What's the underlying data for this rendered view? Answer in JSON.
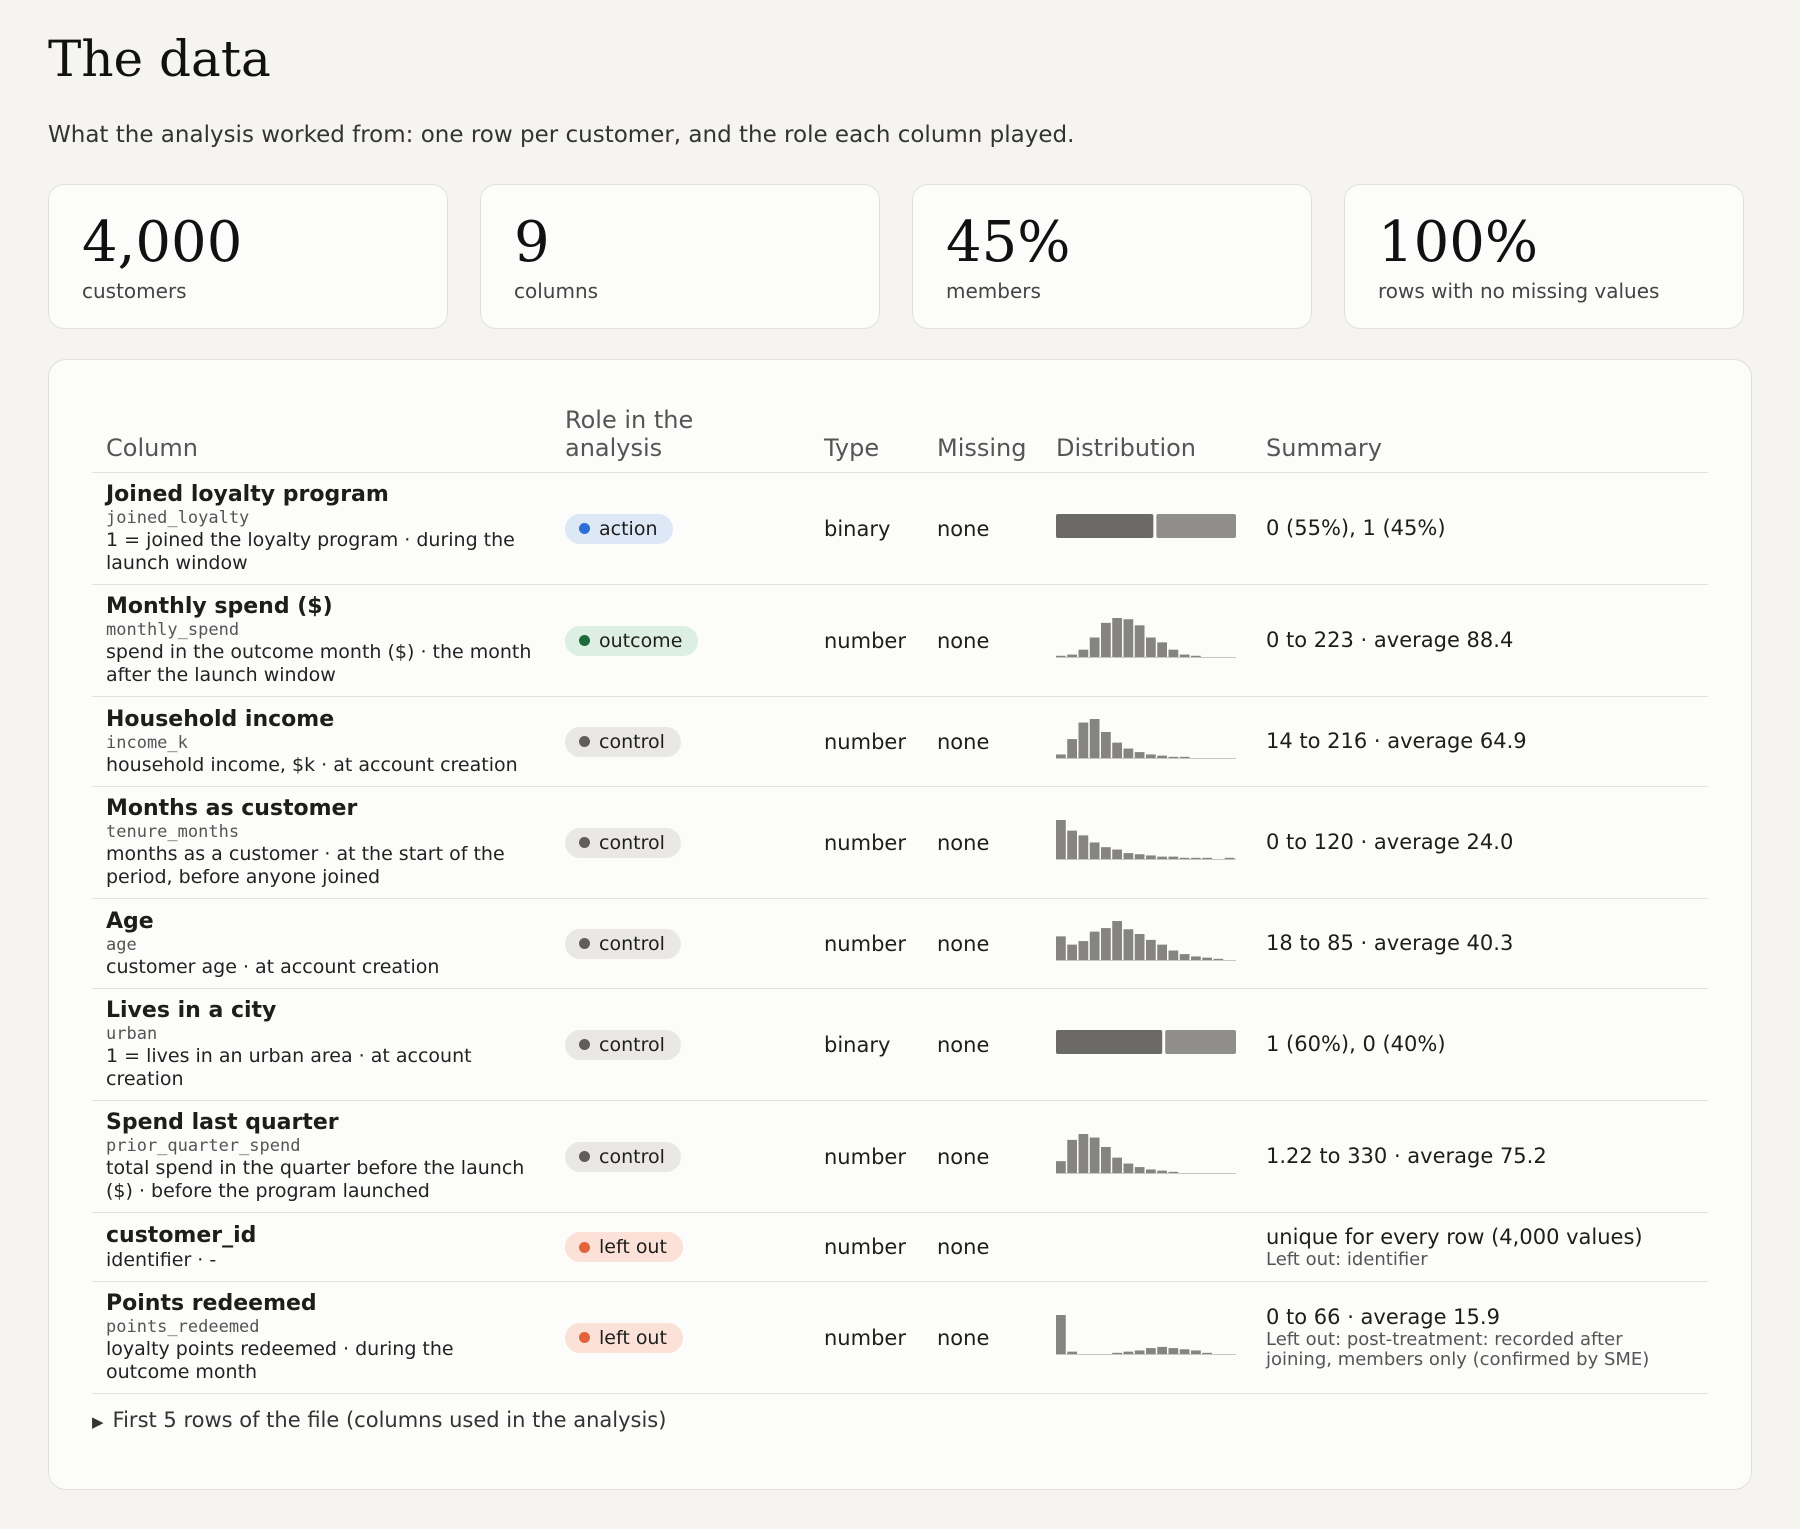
{
  "header": {
    "title": "The data",
    "subtitle": "What the analysis worked from: one row per customer, and the role each column played."
  },
  "stats": [
    {
      "value": "4,000",
      "label": "customers"
    },
    {
      "value": "9",
      "label": "columns"
    },
    {
      "value": "45%",
      "label": "members"
    },
    {
      "value": "100%",
      "label": "rows with no missing values"
    }
  ],
  "table": {
    "columns": [
      "Column",
      "Role in the analysis",
      "Type",
      "Missing",
      "Distribution",
      "Summary"
    ],
    "rows": [
      {
        "name": "Joined loyalty program",
        "field": "joined_loyalty",
        "description": "1 = joined the loyalty program · during the launch window",
        "role": "action",
        "type": "binary",
        "missing": "none",
        "shares": [
          55,
          45
        ],
        "summary": "0 (55%), 1 (45%)"
      },
      {
        "name": "Monthly spend ($)",
        "field": "monthly_spend",
        "description": "spend in the outcome month ($) · the month after the launch window",
        "role": "outcome",
        "type": "number",
        "missing": "none",
        "histogram": [
          1,
          2,
          6,
          16,
          28,
          32,
          31,
          26,
          16,
          12,
          6,
          2,
          1,
          0,
          0,
          0
        ],
        "summary": "0 to 223 · average 88.4"
      },
      {
        "name": "Household income",
        "field": "income_k",
        "description": "household income, $k · at account creation",
        "role": "control",
        "type": "number",
        "missing": "none",
        "histogram": [
          3,
          16,
          30,
          33,
          22,
          13,
          8,
          5,
          3,
          2,
          1,
          1,
          0,
          0,
          0,
          0
        ],
        "summary": "14 to 216 · average 64.9"
      },
      {
        "name": "Months as customer",
        "field": "tenure_months",
        "description": "months as a customer · at the start of the period, before anyone joined",
        "role": "control",
        "type": "number",
        "missing": "none",
        "histogram": [
          33,
          24,
          20,
          14,
          10,
          8,
          5,
          4,
          3,
          2,
          2,
          1,
          1,
          1,
          0,
          1
        ],
        "summary": "0 to 120 · average 24.0"
      },
      {
        "name": "Age",
        "field": "age",
        "description": "customer age · at account creation",
        "role": "control",
        "type": "number",
        "missing": "none",
        "histogram": [
          20,
          13,
          16,
          24,
          27,
          33,
          26,
          22,
          17,
          13,
          8,
          5,
          3,
          2,
          1,
          0
        ],
        "summary": "18 to 85 · average 40.3"
      },
      {
        "name": "Lives in a city",
        "field": "urban",
        "description": "1 = lives in an urban area · at account creation",
        "role": "control",
        "type": "binary",
        "missing": "none",
        "shares": [
          60,
          40
        ],
        "summary": "1 (60%), 0 (40%)"
      },
      {
        "name": "Spend last quarter",
        "field": "prior_quarter_spend",
        "description": "total spend in the quarter before the launch ($) · before the program launched",
        "role": "control",
        "type": "number",
        "missing": "none",
        "histogram": [
          10,
          28,
          33,
          30,
          22,
          13,
          8,
          5,
          3,
          2,
          1,
          0,
          0,
          0,
          0,
          0
        ],
        "summary": "1.22 to 330 · average 75.2"
      },
      {
        "name": "customer_id",
        "description": "identifier · -",
        "role": "left out",
        "type": "number",
        "missing": "none",
        "summary": "unique for every row (4,000 values)",
        "note": "Left out: identifier"
      },
      {
        "name": "Points redeemed",
        "field": "points_redeemed",
        "description": "loyalty points redeemed · during the outcome month",
        "role": "left out",
        "type": "number",
        "missing": "none",
        "histogram": [
          33,
          2,
          0,
          0,
          0,
          1,
          2,
          3,
          5,
          6,
          5,
          4,
          3,
          1,
          0,
          0
        ],
        "summary": "0 to 66 · average 15.9",
        "note": "Left out: post-treatment: recorded after joining, members only (confirmed by SME)"
      }
    ]
  },
  "footer": "First 5 rows of the file (columns used in the analysis)"
}
